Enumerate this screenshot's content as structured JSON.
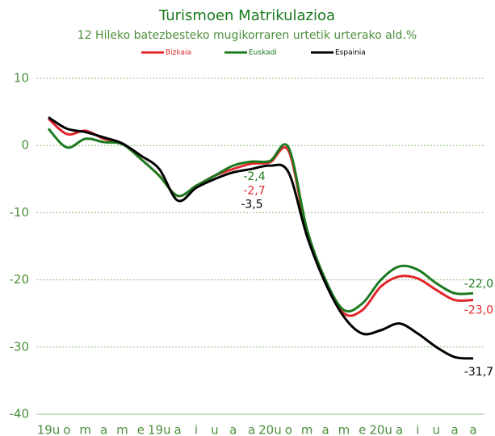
{
  "chart_data": {
    "type": "line",
    "title": "Turismoen Matrikulazioa",
    "subtitle": "12 Hileko batezbesteko mugikorraren urtetik urterako ald.%",
    "categories": [
      "19u",
      "o",
      "m",
      "a",
      "m",
      "e",
      "19u",
      "a",
      "i",
      "u",
      "a",
      "a",
      "20u",
      "o",
      "m",
      "a",
      "m",
      "e",
      "20u",
      "a",
      "i",
      "u",
      "a",
      "a"
    ],
    "series": [
      {
        "name": "Bizkaia",
        "color": "#e0262b",
        "values": [
          4.0,
          1.7,
          2.2,
          1.0,
          0.3,
          -2.0,
          -4.5,
          -7.5,
          -6.0,
          -4.5,
          -3.5,
          -2.7,
          -2.5,
          -0.8,
          -13,
          -20,
          -25,
          -24.5,
          -21,
          -19.5,
          -19.8,
          -21.5,
          -23,
          -23.0
        ],
        "value_labels": [
          null,
          null,
          null,
          null,
          null,
          null,
          null,
          null,
          null,
          null,
          null,
          "-2,7",
          null,
          null,
          null,
          null,
          null,
          null,
          null,
          null,
          null,
          null,
          null,
          "-23,0"
        ]
      },
      {
        "name": "Euskadi",
        "color": "#1b7a1e",
        "values": [
          2.5,
          -0.3,
          1.0,
          0.5,
          0.2,
          -2.0,
          -4.5,
          -7.5,
          -6.0,
          -4.5,
          -3.0,
          -2.4,
          -2.3,
          -0.3,
          -12.5,
          -20,
          -24.5,
          -23.5,
          -20,
          -18,
          -18.5,
          -20.5,
          -22,
          -22.0
        ],
        "value_labels": [
          null,
          null,
          null,
          null,
          null,
          null,
          null,
          null,
          null,
          null,
          null,
          "-2,4",
          null,
          null,
          null,
          null,
          null,
          null,
          null,
          null,
          null,
          null,
          null,
          "-22,0"
        ]
      },
      {
        "name": "Espainia",
        "color": "#000000",
        "values": [
          4.2,
          2.5,
          2.0,
          1.2,
          0.3,
          -1.5,
          -3.5,
          -8.2,
          -6.3,
          -5.0,
          -4.0,
          -3.5,
          -3.0,
          -4.0,
          -13.5,
          -20.5,
          -25.5,
          -28,
          -27.5,
          -26.5,
          -28,
          -30,
          -31.5,
          -31.7
        ],
        "value_labels": [
          null,
          null,
          null,
          null,
          null,
          null,
          null,
          null,
          null,
          null,
          null,
          "-3,5",
          null,
          null,
          null,
          null,
          null,
          null,
          null,
          null,
          null,
          null,
          null,
          "-31,7"
        ]
      }
    ],
    "ylim": [
      -40,
      10
    ],
    "yticks": [
      -40,
      -30,
      -20,
      -10,
      0,
      10
    ],
    "grid": true
  }
}
